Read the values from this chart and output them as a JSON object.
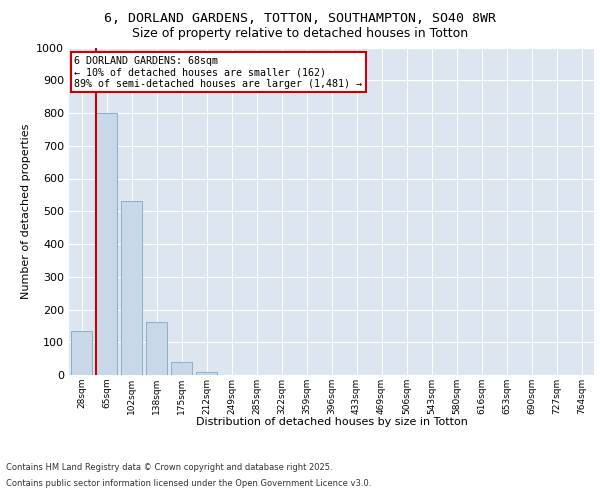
{
  "title_line1": "6, DORLAND GARDENS, TOTTON, SOUTHAMPTON, SO40 8WR",
  "title_line2": "Size of property relative to detached houses in Totton",
  "xlabel": "Distribution of detached houses by size in Totton",
  "ylabel": "Number of detached properties",
  "categories": [
    "28sqm",
    "65sqm",
    "102sqm",
    "138sqm",
    "175sqm",
    "212sqm",
    "249sqm",
    "285sqm",
    "322sqm",
    "359sqm",
    "396sqm",
    "433sqm",
    "469sqm",
    "506sqm",
    "543sqm",
    "580sqm",
    "616sqm",
    "653sqm",
    "690sqm",
    "727sqm",
    "764sqm"
  ],
  "values": [
    135,
    800,
    530,
    163,
    40,
    10,
    0,
    0,
    0,
    0,
    0,
    0,
    0,
    0,
    0,
    0,
    0,
    0,
    0,
    0,
    0
  ],
  "bar_color": "#c8d8e8",
  "bar_edge_color": "#8ab0cc",
  "annotation_text_line1": "6 DORLAND GARDENS: 68sqm",
  "annotation_text_line2": "← 10% of detached houses are smaller (162)",
  "annotation_text_line3": "89% of semi-detached houses are larger (1,481) →",
  "annotation_box_color": "#ffffff",
  "annotation_border_color": "#cc0000",
  "ylim": [
    0,
    1000
  ],
  "yticks": [
    0,
    100,
    200,
    300,
    400,
    500,
    600,
    700,
    800,
    900,
    1000
  ],
  "background_color": "#dde6f0",
  "grid_color": "#ffffff",
  "red_line_color": "#cc0000",
  "footer_line1": "Contains HM Land Registry data © Crown copyright and database right 2025.",
  "footer_line2": "Contains public sector information licensed under the Open Government Licence v3.0."
}
